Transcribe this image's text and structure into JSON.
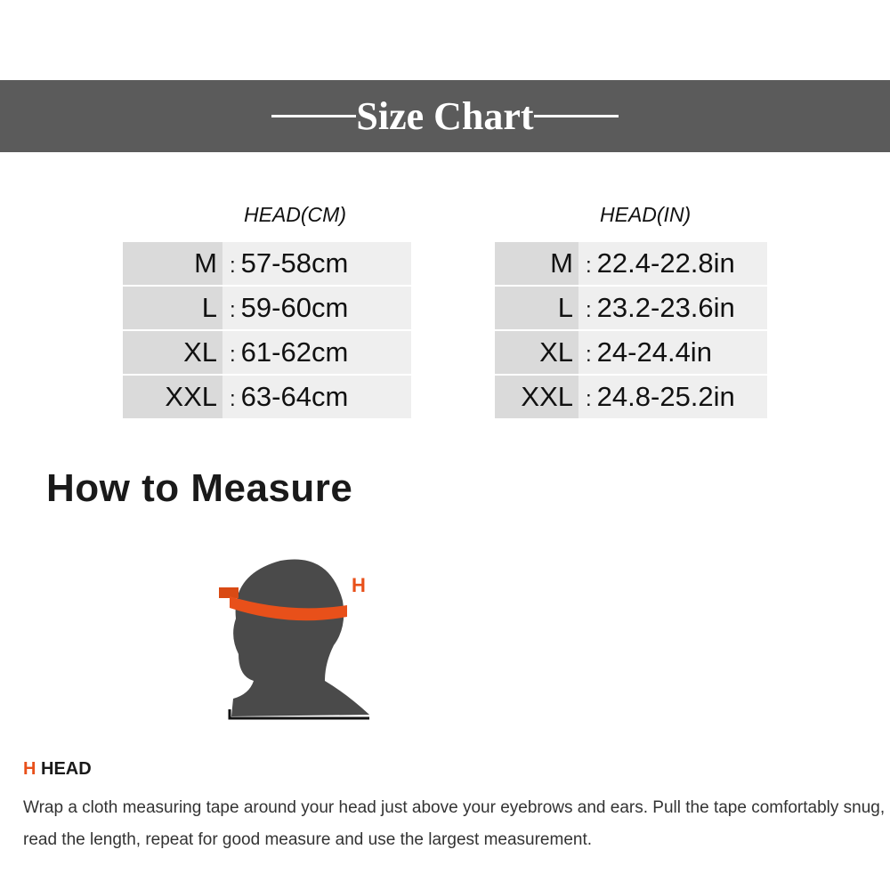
{
  "banner": {
    "title": "Size Chart"
  },
  "tables": [
    {
      "header": "HEAD(CM)",
      "rows": [
        {
          "size": "M",
          "value": "57-58cm"
        },
        {
          "size": "L",
          "value": "59-60cm"
        },
        {
          "size": "XL",
          "value": "61-62cm"
        },
        {
          "size": "XXL",
          "value": "63-64cm"
        }
      ]
    },
    {
      "header": "HEAD(IN)",
      "rows": [
        {
          "size": "M",
          "value": "22.4-22.8in"
        },
        {
          "size": "L",
          "value": "23.2-23.6in"
        },
        {
          "size": "XL",
          "value": "24-24.4in"
        },
        {
          "size": "XXL",
          "value": "24.8-25.2in"
        }
      ]
    }
  ],
  "separator": ":",
  "how_to": {
    "title": "How to Measure",
    "figure_label": "H",
    "section_letter": "H",
    "section_name": "HEAD",
    "description": "Wrap a cloth measuring tape around your head just above your eyebrows and ears. Pull the tape comfortably snug, read the length, repeat for good measure and use the largest measurement."
  },
  "colors": {
    "banner": "#5b5b5b",
    "accent": "#e8501a",
    "head": "#4a4a4a"
  }
}
